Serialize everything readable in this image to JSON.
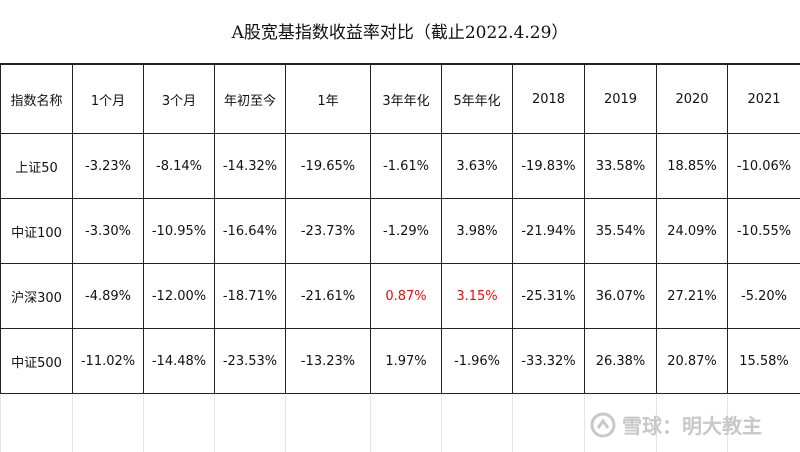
{
  "title": "A股宽基指数收益率对比（截止2022.4.29）",
  "table": {
    "header": [
      "指数名称",
      "1个月",
      "3个月",
      "年初至今",
      "1年",
      "3年年化",
      "5年年化",
      "2018",
      "2019",
      "2020",
      "2021"
    ],
    "rows": [
      [
        "上证50",
        "-3.23%",
        "-8.14%",
        "-14.32%",
        "-19.65%",
        "-1.61%",
        "3.63%",
        "-19.83%",
        "33.58%",
        "18.85%",
        "-10.06%"
      ],
      [
        "中证100",
        "-3.30%",
        "-10.95%",
        "-16.64%",
        "-23.73%",
        "-1.29%",
        "3.98%",
        "-21.94%",
        "35.54%",
        "24.09%",
        "-10.55%"
      ],
      [
        "沪深300",
        "-4.89%",
        "-12.00%",
        "-18.71%",
        "-21.61%",
        "0.87%",
        "3.15%",
        "-25.31%",
        "36.07%",
        "27.21%",
        "-5.20%"
      ],
      [
        "中证500",
        "-11.02%",
        "-14.48%",
        "-23.53%",
        "-13.23%",
        "1.97%",
        "-1.96%",
        "-33.32%",
        "26.38%",
        "20.87%",
        "15.58%"
      ]
    ]
  },
  "watermark": "雪球：明大教主"
}
